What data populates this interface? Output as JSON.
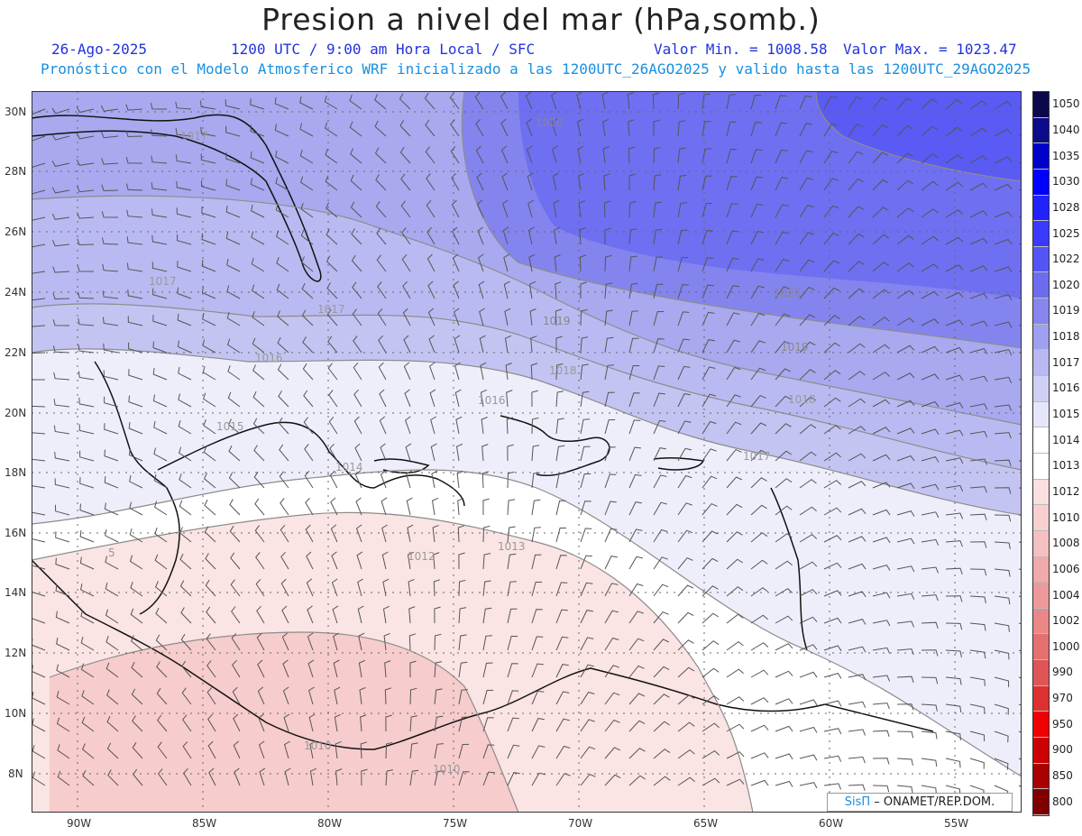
{
  "header": {
    "title": "Presion a nivel del mar (hPa,somb.)",
    "date": "26-Ago-2025",
    "time": "1200 UTC / 9:00 am Hora Local / SFC",
    "min_label": "Valor Min. = 1008.58",
    "max_label": "Valor Max. = 1023.47",
    "forecast_note": "Pronóstico con el Modelo Atmosferico WRF inicializado a las 1200UTC_26AGO2025 y valido hasta las  1200UTC_29AGO2025"
  },
  "axes": {
    "lat_labels": [
      "30N",
      "28N",
      "26N",
      "24N",
      "22N",
      "20N",
      "18N",
      "16N",
      "14N",
      "12N",
      "10N",
      "8N"
    ],
    "lon_labels": [
      "90W",
      "85W",
      "80W",
      "75W",
      "70W",
      "65W",
      "60W",
      "55W"
    ]
  },
  "colorbar": {
    "levels": [
      "1050",
      "1040",
      "1035",
      "1030",
      "1028",
      "1025",
      "1022",
      "1020",
      "1019",
      "1018",
      "1017",
      "1016",
      "1015",
      "1014",
      "1013",
      "1012",
      "1010",
      "1008",
      "1006",
      "1004",
      "1002",
      "1000",
      "990",
      "970",
      "950",
      "900",
      "850",
      "800"
    ],
    "colors": [
      "#0a0a4a",
      "#0b0b8c",
      "#0000cc",
      "#0000ff",
      "#2222ff",
      "#3a3aff",
      "#5555f5",
      "#6c6cf0",
      "#8686ee",
      "#a0a0f0",
      "#b8b8f2",
      "#d0d0f6",
      "#e6e6fa",
      "#ffffff",
      "#ffffff",
      "#fbe0e0",
      "#f8d0d0",
      "#f5c0c0",
      "#f0aaaa",
      "#ee9999",
      "#ea8888",
      "#e57070",
      "#e05555",
      "#dd3030",
      "#f00000",
      "#cc0000",
      "#aa0000",
      "#800000"
    ]
  },
  "isobar_labels": [
    "1017",
    "1017",
    "1017",
    "1016",
    "1015",
    "1014",
    "1013",
    "1012",
    "1010",
    "1010",
    "1020",
    "1020",
    "1019",
    "1019",
    "1018",
    "1018",
    "1017",
    "1016",
    "5"
  ],
  "credit": {
    "brand": "SisΠ",
    "text": "– ONAMET/REP.DOM."
  }
}
